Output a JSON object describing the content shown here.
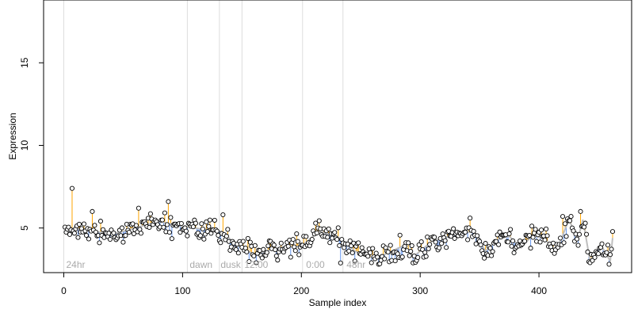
{
  "chart_data": {
    "type": "scatter",
    "xlabel": "Sample index",
    "ylabel": "Expression",
    "xlim": [
      -17,
      478
    ],
    "ylim": [
      2.3,
      18.8
    ],
    "x_ticks": [
      0,
      100,
      200,
      300,
      400
    ],
    "y_ticks": [
      5,
      10,
      15
    ],
    "colors": {
      "above_fit": "#FFA500",
      "below_fit": "#6495ED",
      "fit_line": "#BEBEBE",
      "separator": "#DDDDDD",
      "annotation": "#AAAAAA",
      "point_fill": "#FFFFFF",
      "point_stroke": "#000000"
    },
    "separators": [
      0,
      104,
      131,
      150,
      201,
      235
    ],
    "annotations": [
      {
        "x": 2,
        "label": "24hr"
      },
      {
        "x": 106,
        "label": "dawn"
      },
      {
        "x": 132,
        "label": "dusk"
      },
      {
        "x": 152,
        "label": "12:00"
      },
      {
        "x": 204,
        "label": "0:00"
      },
      {
        "x": 238,
        "label": "48hr"
      }
    ],
    "fit_anchors": [
      [
        1,
        5.0
      ],
      [
        20,
        4.9
      ],
      [
        40,
        4.6
      ],
      [
        60,
        5.0
      ],
      [
        80,
        5.4
      ],
      [
        100,
        5.1
      ],
      [
        120,
        4.9
      ],
      [
        133,
        4.8
      ],
      [
        145,
        4.0
      ],
      [
        160,
        3.4
      ],
      [
        180,
        3.8
      ],
      [
        200,
        3.9
      ],
      [
        215,
        4.8
      ],
      [
        230,
        4.5
      ],
      [
        245,
        3.6
      ],
      [
        260,
        3.2
      ],
      [
        270,
        3.4
      ],
      [
        285,
        3.9
      ],
      [
        295,
        3.3
      ],
      [
        310,
        4.2
      ],
      [
        330,
        4.6
      ],
      [
        345,
        4.8
      ],
      [
        355,
        3.6
      ],
      [
        365,
        4.3
      ],
      [
        375,
        4.5
      ],
      [
        385,
        3.8
      ],
      [
        395,
        4.6
      ],
      [
        405,
        4.3
      ],
      [
        415,
        3.6
      ],
      [
        425,
        5.5
      ],
      [
        433,
        4.4
      ],
      [
        437,
        5.5
      ],
      [
        443,
        3.0
      ],
      [
        452,
        4.0
      ],
      [
        460,
        3.0
      ],
      [
        462,
        4.4
      ]
    ],
    "point_count": 462,
    "notable_points": [
      {
        "x": 7,
        "y": 7.4
      },
      {
        "x": 24,
        "y": 6.0
      },
      {
        "x": 63,
        "y": 6.2
      },
      {
        "x": 88,
        "y": 6.6
      },
      {
        "x": 134,
        "y": 5.8
      },
      {
        "x": 162,
        "y": 2.9
      },
      {
        "x": 233,
        "y": 2.7
      },
      {
        "x": 342,
        "y": 5.6
      },
      {
        "x": 420,
        "y": 5.7
      },
      {
        "x": 435,
        "y": 6.0
      },
      {
        "x": 443,
        "y": 2.9
      }
    ]
  }
}
